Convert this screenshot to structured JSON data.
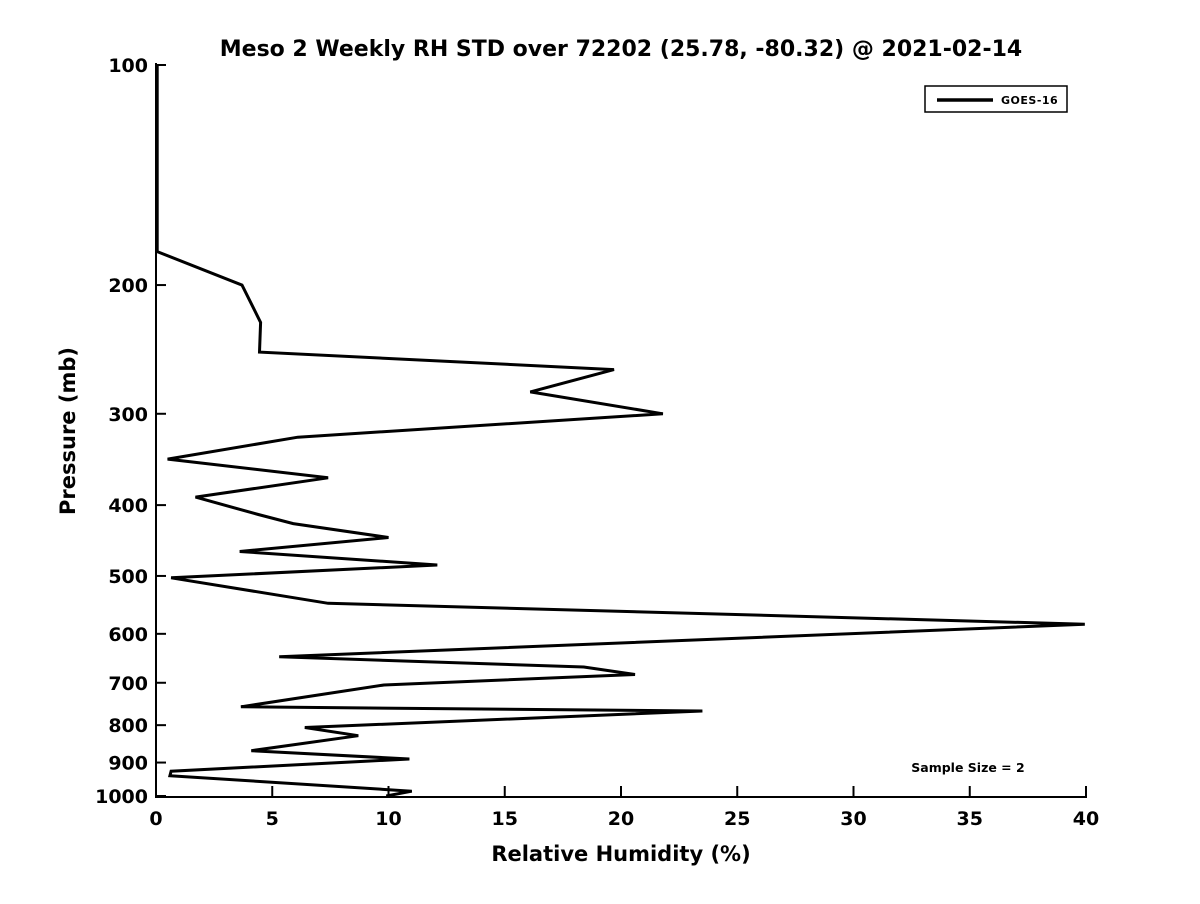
{
  "title": "Meso 2 Weekly RH STD over 72202 (25.78, -80.32) @ 2021-02-14",
  "legend": {
    "label": "GOES-16"
  },
  "annotation": "Sample Size = 2",
  "colors": {
    "line": "#000000",
    "background": "#ffffff",
    "text": "#000000",
    "legend_border": "#000000"
  },
  "chart_data": {
    "type": "line",
    "title": "Meso 2 Weekly RH STD over 72202 (25.78, -80.32) @ 2021-02-14",
    "xlabel": "Relative Humidity (%)",
    "ylabel": "Pressure (mb)",
    "annotation": "Sample Size = 2",
    "xlim": [
      0,
      40
    ],
    "ylim": [
      100,
      1000
    ],
    "y_scale": "log",
    "y_inverted": true,
    "grid": false,
    "legend_position": "upper right",
    "x_ticks": [
      0,
      5,
      10,
      15,
      20,
      25,
      30,
      35,
      40
    ],
    "y_ticks": [
      100,
      200,
      300,
      400,
      500,
      600,
      700,
      800,
      900,
      1000
    ],
    "series": [
      {
        "name": "GOES-16",
        "color": "#000000",
        "points_format": "[pressure_mb, rh_std_percent]",
        "points": [
          [
            100,
            0.05
          ],
          [
            180,
            0.05
          ],
          [
            200,
            3.7
          ],
          [
            225,
            4.5
          ],
          [
            247,
            4.45
          ],
          [
            261,
            19.7
          ],
          [
            280,
            16.1
          ],
          [
            300,
            21.8
          ],
          [
            323,
            6.1
          ],
          [
            346,
            0.5
          ],
          [
            367,
            7.4
          ],
          [
            390,
            1.7
          ],
          [
            412,
            4.4
          ],
          [
            424,
            5.9
          ],
          [
            443,
            10.0
          ],
          [
            463,
            3.6
          ],
          [
            483,
            12.1
          ],
          [
            503,
            0.65
          ],
          [
            545,
            7.4
          ],
          [
            582,
            39.95
          ],
          [
            645,
            5.3
          ],
          [
            666,
            18.4
          ],
          [
            682,
            20.6
          ],
          [
            705,
            9.8
          ],
          [
            755,
            3.65
          ],
          [
            765,
            23.5
          ],
          [
            806,
            6.4
          ],
          [
            827,
            8.7
          ],
          [
            867,
            4.1
          ],
          [
            890,
            10.9
          ],
          [
            925,
            0.65
          ],
          [
            938,
            0.6
          ],
          [
            985,
            11.0
          ],
          [
            1000,
            9.9
          ]
        ]
      }
    ]
  }
}
